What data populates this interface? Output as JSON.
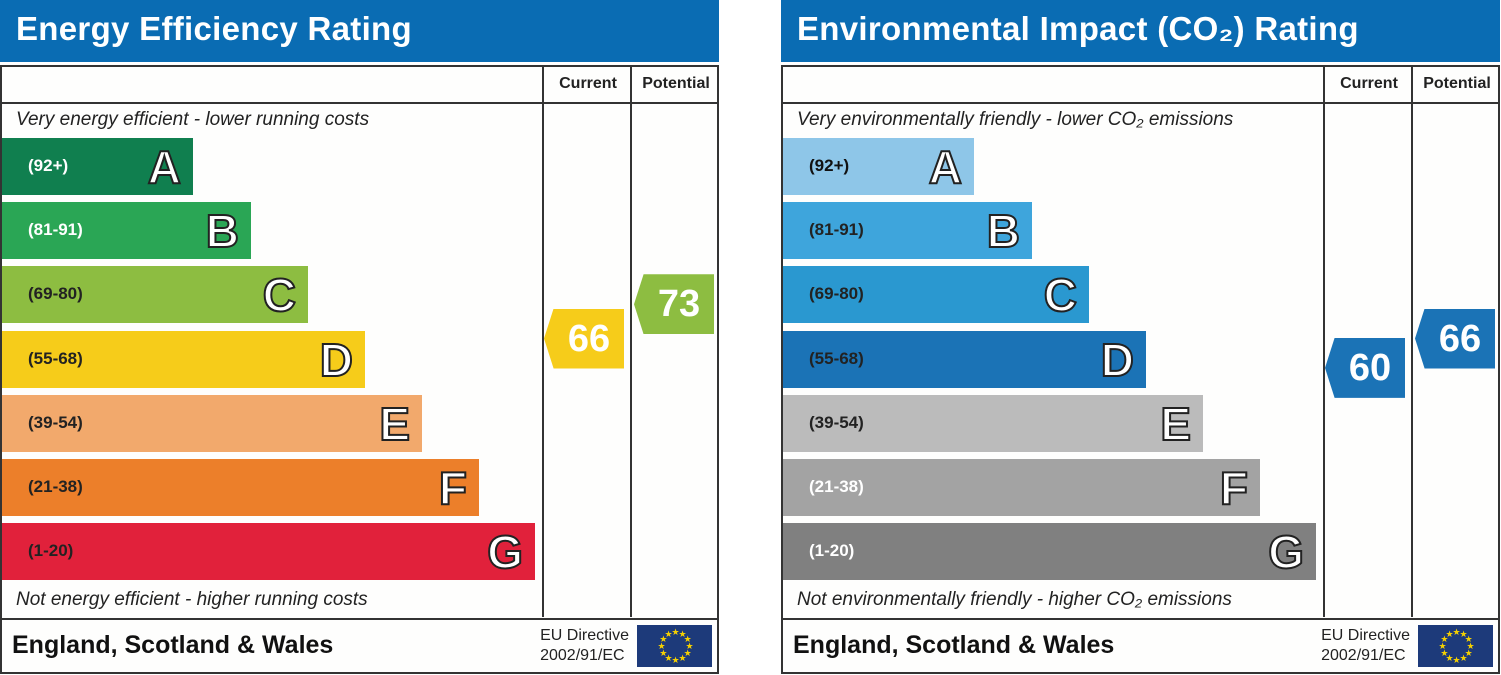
{
  "panels": [
    {
      "title": "Energy Efficiency Rating",
      "current_header": "Current",
      "potential_header": "Potential",
      "top_note": "Very energy efficient - lower running costs",
      "bottom_note": "Not energy efficient - higher running costs",
      "footer": "England, Scotland & Wales",
      "eu_line1": "EU Directive",
      "eu_line2": "2002/91/EC",
      "bands": [
        {
          "letter": "A",
          "range": "(92+)",
          "color": "#107f4f",
          "text_color": "#ffffff"
        },
        {
          "letter": "B",
          "range": "(81-91)",
          "color": "#2aa655",
          "text_color": "#ffffff"
        },
        {
          "letter": "C",
          "range": "(69-80)",
          "color": "#8dbd41",
          "text_color": "#222222"
        },
        {
          "letter": "D",
          "range": "(55-68)",
          "color": "#f6cc1a",
          "text_color": "#222222"
        },
        {
          "letter": "E",
          "range": "(39-54)",
          "color": "#f2a96c",
          "text_color": "#222222"
        },
        {
          "letter": "F",
          "range": "(21-38)",
          "color": "#ec7f2a",
          "text_color": "#222222"
        },
        {
          "letter": "G",
          "range": "(1-20)",
          "color": "#e1213b",
          "text_color": "#222222"
        }
      ],
      "current": {
        "value": "66",
        "color": "#f6cc1a"
      },
      "potential": {
        "value": "73",
        "color": "#8dbd41"
      }
    },
    {
      "title": "Environmental Impact (CO₂) Rating",
      "current_header": "Current",
      "potential_header": "Potential",
      "top_note": "Very environmentally friendly - lower CO₂ emissions",
      "bottom_note": "Not environmentally friendly - higher CO₂ emissions",
      "footer": "England, Scotland & Wales",
      "eu_line1": "EU Directive",
      "eu_line2": "2002/91/EC",
      "bands": [
        {
          "letter": "A",
          "range": "(92+)",
          "color": "#8ec6e8",
          "text_color": "#111111"
        },
        {
          "letter": "B",
          "range": "(81-91)",
          "color": "#3ea5dc",
          "text_color": "#222222"
        },
        {
          "letter": "C",
          "range": "(69-80)",
          "color": "#2a98d0",
          "text_color": "#222222"
        },
        {
          "letter": "D",
          "range": "(55-68)",
          "color": "#1b73b6",
          "text_color": "#222222"
        },
        {
          "letter": "E",
          "range": "(39-54)",
          "color": "#bbbbbb",
          "text_color": "#222222"
        },
        {
          "letter": "F",
          "range": "(21-38)",
          "color": "#a3a3a3",
          "text_color": "#ffffff"
        },
        {
          "letter": "G",
          "range": "(1-20)",
          "color": "#808080",
          "text_color": "#ffffff"
        }
      ],
      "current": {
        "value": "60",
        "color": "#1b73b6"
      },
      "potential": {
        "value": "66",
        "color": "#1b73b6"
      }
    }
  ],
  "chart_data": [
    {
      "type": "bar",
      "title": "Energy Efficiency Rating",
      "categories": [
        "A",
        "B",
        "C",
        "D",
        "E",
        "F",
        "G"
      ],
      "ranges": [
        "92+",
        "81-91",
        "69-80",
        "55-68",
        "39-54",
        "21-38",
        "1-20"
      ],
      "current": 66,
      "potential": 73
    },
    {
      "type": "bar",
      "title": "Environmental Impact (CO₂) Rating",
      "categories": [
        "A",
        "B",
        "C",
        "D",
        "E",
        "F",
        "G"
      ],
      "ranges": [
        "92+",
        "81-91",
        "69-80",
        "55-68",
        "39-54",
        "21-38",
        "1-20"
      ],
      "current": 60,
      "potential": 66
    }
  ]
}
